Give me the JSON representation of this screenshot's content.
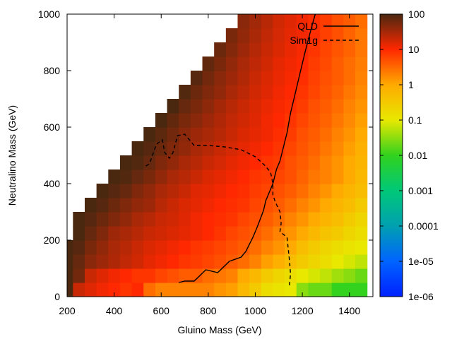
{
  "chart_data": {
    "type": "heatmap",
    "title": "",
    "xlabel": "Gluino Mass (GeV)",
    "ylabel": "Neutralino Mass (GeV)",
    "xlim": [
      200,
      1500
    ],
    "ylim": [
      0,
      1000
    ],
    "x_ticks": [
      "200",
      "400",
      "600",
      "800",
      "1000",
      "1200",
      "1400"
    ],
    "y_ticks": [
      "0",
      "200",
      "400",
      "600",
      "800",
      "1000"
    ],
    "cell_size": {
      "x": 50,
      "y": 50
    },
    "colorbar": {
      "scale": "log",
      "range": [
        1e-06,
        100
      ],
      "tick_labels": [
        "100",
        "10",
        "1",
        "0.1",
        "0.01",
        "0.001",
        "0.0001",
        "1e-05",
        "1e-06"
      ]
    },
    "cells": [
      {
        "y": 25,
        "values": [
          100,
          20,
          15,
          12,
          10,
          8,
          10,
          3,
          2,
          2,
          2,
          2,
          2,
          1.5,
          1.2,
          0.6,
          0.3,
          0.15,
          0.12,
          0.1,
          0.03,
          0.02,
          0.02,
          0.01,
          0.01,
          0.01
        ]
      },
      {
        "y": 75,
        "values": [
          100,
          60,
          20,
          15,
          12,
          10,
          8,
          8,
          6,
          5,
          4,
          4,
          3,
          2.5,
          2,
          1,
          0.6,
          0.3,
          0.2,
          0.15,
          0.1,
          0.08,
          0.06,
          0.04,
          0.03,
          0.02
        ]
      },
      {
        "y": 125,
        "values": [
          100,
          70,
          45,
          35,
          28,
          22,
          18,
          14,
          12,
          10,
          8,
          7,
          6,
          5,
          4,
          3,
          2,
          1.2,
          0.8,
          0.5,
          0.3,
          0.2,
          0.15,
          0.1,
          0.08,
          0.06
        ]
      },
      {
        "y": 175,
        "values": [
          100,
          85,
          55,
          40,
          30,
          25,
          20,
          16,
          14,
          12,
          10,
          8,
          7,
          6,
          5,
          4,
          3,
          2,
          1.5,
          1,
          0.5,
          0.3,
          0.2,
          0.15,
          0.12,
          0.1
        ]
      },
      {
        "y": 225,
        "values": [
          null,
          100,
          70,
          50,
          35,
          30,
          25,
          20,
          18,
          16,
          14,
          12,
          10,
          8,
          6,
          5,
          4,
          3,
          2,
          1.5,
          1,
          0.6,
          0.4,
          0.3,
          0.2,
          0.15
        ]
      },
      {
        "y": 275,
        "values": [
          null,
          100,
          85,
          65,
          50,
          40,
          30,
          25,
          20,
          18,
          15,
          12,
          10,
          9,
          8,
          6,
          5,
          4,
          3,
          2,
          1.5,
          1,
          0.7,
          0.5,
          0.3,
          0.2
        ]
      },
      {
        "y": 325,
        "values": [
          null,
          null,
          100,
          85,
          65,
          50,
          40,
          35,
          25,
          20,
          16,
          14,
          12,
          10,
          9,
          8,
          6,
          5,
          4,
          3,
          2,
          1.5,
          1,
          0.7,
          0.5,
          0.3
        ]
      },
      {
        "y": 375,
        "values": [
          null,
          null,
          null,
          100,
          85,
          70,
          50,
          40,
          30,
          25,
          20,
          15,
          14,
          12,
          10,
          9,
          7,
          6,
          5,
          4,
          3,
          2,
          1.5,
          1,
          0.7,
          0.5
        ]
      },
      {
        "y": 425,
        "values": [
          null,
          null,
          null,
          null,
          100,
          90,
          70,
          55,
          40,
          30,
          25,
          20,
          16,
          14,
          12,
          10,
          8,
          7,
          6,
          5,
          3.5,
          2.5,
          2,
          1.5,
          1,
          0.6
        ]
      },
      {
        "y": 475,
        "values": [
          null,
          null,
          null,
          null,
          null,
          100,
          90,
          70,
          50,
          40,
          30,
          25,
          20,
          17,
          14,
          12,
          10,
          8,
          7,
          5,
          4,
          3,
          2,
          1.5,
          1,
          0.7
        ]
      },
      {
        "y": 525,
        "values": [
          null,
          null,
          null,
          null,
          null,
          null,
          100,
          85,
          65,
          50,
          40,
          30,
          25,
          20,
          17,
          14,
          12,
          10,
          8,
          6,
          4.5,
          3.5,
          2.5,
          1.8,
          1.2,
          0.8
        ]
      },
      {
        "y": 575,
        "values": [
          null,
          null,
          null,
          null,
          null,
          null,
          null,
          100,
          80,
          60,
          45,
          35,
          30,
          25,
          20,
          16,
          14,
          12,
          9,
          7,
          5,
          4,
          3,
          2,
          1.5,
          1
        ]
      },
      {
        "y": 625,
        "values": [
          null,
          null,
          null,
          null,
          null,
          null,
          null,
          null,
          100,
          75,
          55,
          45,
          35,
          28,
          22,
          18,
          15,
          12,
          10,
          8,
          6,
          4.5,
          3.5,
          2.5,
          1.8,
          1.2
        ]
      },
      {
        "y": 675,
        "values": [
          null,
          null,
          null,
          null,
          null,
          null,
          null,
          null,
          null,
          100,
          70,
          55,
          42,
          32,
          25,
          20,
          16,
          13,
          11,
          9,
          7,
          5,
          4,
          3,
          2,
          1.5
        ]
      },
      {
        "y": 725,
        "values": [
          null,
          null,
          null,
          null,
          null,
          null,
          null,
          null,
          null,
          null,
          90,
          65,
          50,
          40,
          30,
          24,
          18,
          15,
          12,
          10,
          8,
          6,
          4.5,
          3.5,
          2.5,
          1.8
        ]
      },
      {
        "y": 775,
        "values": [
          null,
          null,
          null,
          null,
          null,
          null,
          null,
          null,
          null,
          null,
          null,
          85,
          60,
          45,
          35,
          27,
          20,
          16,
          13,
          11,
          9,
          6.5,
          5,
          4,
          3,
          2
        ]
      },
      {
        "y": 825,
        "values": [
          null,
          null,
          null,
          null,
          null,
          null,
          null,
          null,
          null,
          null,
          null,
          null,
          75,
          55,
          40,
          30,
          23,
          18,
          14,
          12,
          10,
          7,
          5.5,
          4,
          3,
          2.2
        ]
      },
      {
        "y": 875,
        "values": [
          null,
          null,
          null,
          null,
          null,
          null,
          null,
          null,
          null,
          null,
          null,
          null,
          null,
          65,
          48,
          35,
          26,
          20,
          16,
          13,
          11,
          8,
          6,
          4.5,
          3.5,
          2.5
        ]
      },
      {
        "y": 925,
        "values": [
          null,
          null,
          null,
          null,
          null,
          null,
          null,
          null,
          null,
          null,
          null,
          null,
          null,
          null,
          55,
          40,
          30,
          22,
          17,
          14,
          12,
          9,
          6.5,
          5,
          3.5,
          2.5
        ]
      },
      {
        "y": 975,
        "values": [
          null,
          null,
          null,
          null,
          null,
          null,
          null,
          null,
          null,
          null,
          null,
          null,
          null,
          null,
          null,
          45,
          33,
          25,
          18,
          15,
          12,
          9,
          7,
          5,
          4,
          3
        ]
      }
    ],
    "series": [
      {
        "name": "QLD",
        "style": "solid",
        "points": [
          [
            675,
            50
          ],
          [
            700,
            55
          ],
          [
            740,
            55
          ],
          [
            790,
            95
          ],
          [
            840,
            85
          ],
          [
            890,
            125
          ],
          [
            940,
            140
          ],
          [
            960,
            160
          ],
          [
            990,
            210
          ],
          [
            1010,
            250
          ],
          [
            1035,
            305
          ],
          [
            1045,
            340
          ],
          [
            1060,
            370
          ],
          [
            1075,
            400
          ],
          [
            1090,
            450
          ],
          [
            1105,
            480
          ],
          [
            1120,
            530
          ],
          [
            1135,
            580
          ],
          [
            1150,
            650
          ],
          [
            1170,
            720
          ],
          [
            1190,
            790
          ],
          [
            1210,
            860
          ],
          [
            1235,
            940
          ],
          [
            1255,
            1000
          ]
        ]
      },
      {
        "name": "Sim1g",
        "style": "dashed",
        "points": [
          [
            1145,
            40
          ],
          [
            1150,
            80
          ],
          [
            1145,
            130
          ],
          [
            1135,
            210
          ],
          [
            1105,
            230
          ],
          [
            1110,
            260
          ],
          [
            1105,
            300
          ],
          [
            1085,
            335
          ],
          [
            1075,
            360
          ],
          [
            1075,
            400
          ],
          [
            1065,
            440
          ],
          [
            1040,
            465
          ],
          [
            1000,
            495
          ],
          [
            940,
            520
          ],
          [
            870,
            530
          ],
          [
            800,
            535
          ],
          [
            740,
            535
          ],
          [
            720,
            555
          ],
          [
            700,
            575
          ],
          [
            670,
            570
          ],
          [
            650,
            510
          ],
          [
            635,
            490
          ],
          [
            615,
            510
          ],
          [
            605,
            555
          ],
          [
            580,
            540
          ],
          [
            550,
            470
          ],
          [
            530,
            460
          ]
        ]
      }
    ]
  }
}
